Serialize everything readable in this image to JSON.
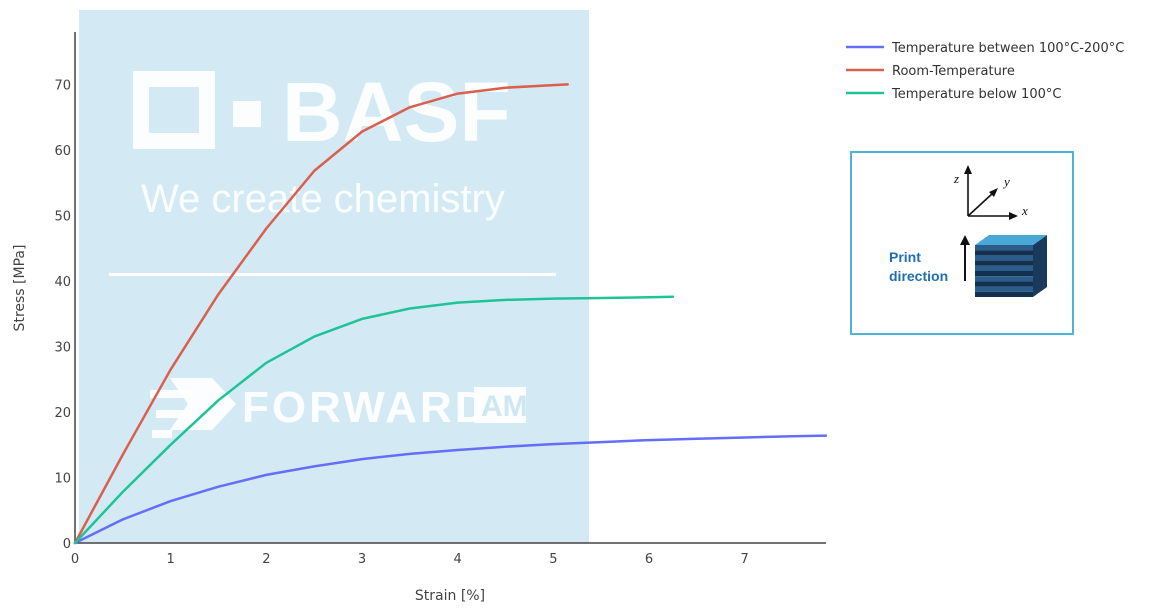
{
  "chart_data": {
    "type": "line",
    "title": "",
    "xlabel": "Strain [%]",
    "ylabel": "Stress [MPa]",
    "xlim": [
      0,
      7.85
    ],
    "ylim": [
      0,
      78
    ],
    "x_ticks": [
      "0",
      "1",
      "2",
      "3",
      "4",
      "5",
      "6",
      "7"
    ],
    "y_ticks": [
      "0",
      "10",
      "20",
      "30",
      "40",
      "50",
      "60",
      "70"
    ],
    "grid": false,
    "legend_position": "top-right",
    "series": [
      {
        "name": "Temperature between 100°C-200°C",
        "color": "#636efa",
        "x": [
          0,
          0.5,
          1.0,
          1.5,
          2.0,
          2.5,
          3.0,
          3.5,
          4.0,
          4.5,
          5.0,
          5.5,
          6.0,
          6.5,
          7.0,
          7.5,
          7.85
        ],
        "y": [
          0,
          3.6,
          6.4,
          8.6,
          10.4,
          11.7,
          12.8,
          13.6,
          14.2,
          14.7,
          15.1,
          15.4,
          15.7,
          15.9,
          16.1,
          16.3,
          16.4
        ]
      },
      {
        "name": "Room-Temperature",
        "color": "#d9604d",
        "x": [
          0,
          0.5,
          1.0,
          1.5,
          2.0,
          2.5,
          3.0,
          3.5,
          4.0,
          4.5,
          5.0,
          5.15
        ],
        "y": [
          0,
          13.5,
          26.5,
          38.0,
          48.0,
          56.8,
          62.8,
          66.5,
          68.6,
          69.5,
          69.9,
          70.0
        ]
      },
      {
        "name": "Temperature below 100°C",
        "color": "#1fc496",
        "x": [
          0,
          0.5,
          1.0,
          1.5,
          2.0,
          2.5,
          3.0,
          3.5,
          4.0,
          4.5,
          5.0,
          5.5,
          6.0,
          6.25
        ],
        "y": [
          0,
          7.8,
          15.0,
          21.8,
          27.5,
          31.5,
          34.2,
          35.8,
          36.7,
          37.1,
          37.3,
          37.4,
          37.5,
          37.6
        ]
      }
    ]
  },
  "watermark": {
    "brand": "BASF",
    "tagline": "We create chemistry",
    "product": "FORWARD",
    "product_suffix": "AM",
    "panel_color": "#d3eaf5"
  },
  "inset": {
    "axes": [
      "z",
      "y",
      "x"
    ],
    "print_label_line1": "Print",
    "print_label_line2": "direction",
    "border_color": "#4fb3d3",
    "block_color": "#4aa8d8"
  }
}
